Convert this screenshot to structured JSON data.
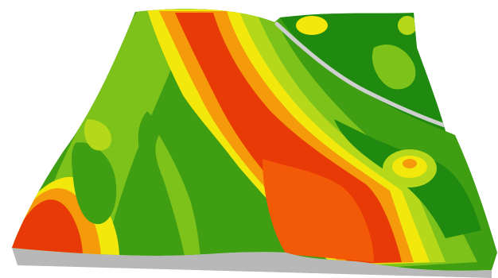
{
  "palette": {
    "background": "#ffffff",
    "base_shadow": "#b8b8b8",
    "base_shadow_light": "#d6d6d6",
    "seam": "#cfcfcf",
    "dark_green": "#1f8a0f",
    "green": "#3f9e12",
    "light_green": "#7cc21a",
    "yellow_green": "#b5d91a",
    "yellow": "#f2e80c",
    "orange": "#f59a0a",
    "red_orange": "#f25a08",
    "red": "#e83a06"
  },
  "legend": []
}
